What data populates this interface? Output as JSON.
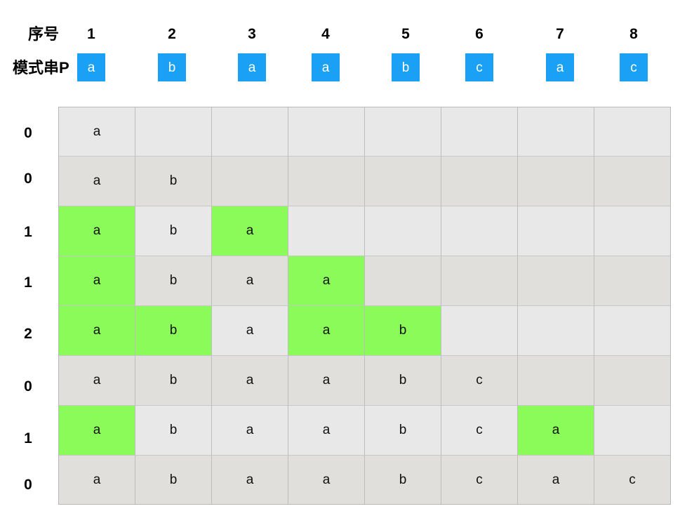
{
  "header": {
    "index_label": "序号",
    "pattern_label": "模式串P"
  },
  "columns": [
    "1",
    "2",
    "3",
    "4",
    "5",
    "6",
    "7",
    "8"
  ],
  "pattern": [
    "a",
    "b",
    "a",
    "a",
    "b",
    "c",
    "a",
    "c"
  ],
  "next_values": [
    "0",
    "0",
    "1",
    "1",
    "2",
    "0",
    "1",
    "0"
  ],
  "prefix_rows": [
    [
      "a"
    ],
    [
      "a",
      "b"
    ],
    [
      "a",
      "b",
      "a"
    ],
    [
      "a",
      "b",
      "a",
      "a"
    ],
    [
      "a",
      "b",
      "a",
      "a",
      "b"
    ],
    [
      "a",
      "b",
      "a",
      "a",
      "b",
      "c"
    ],
    [
      "a",
      "b",
      "a",
      "a",
      "b",
      "c",
      "a"
    ],
    [
      "a",
      "b",
      "a",
      "a",
      "b",
      "c",
      "a",
      "c"
    ]
  ],
  "highlighted_cells": [
    [],
    [],
    [
      0,
      2
    ],
    [
      0,
      3
    ],
    [
      0,
      1,
      3,
      4
    ],
    [],
    [
      0,
      6
    ],
    []
  ],
  "colors": {
    "pattern_box": "#1aa1f5",
    "highlight": "#8afb58",
    "row_light": "#e8e8e8",
    "row_dark": "#e0dfdb",
    "grid_border": "#b9b9b9"
  }
}
